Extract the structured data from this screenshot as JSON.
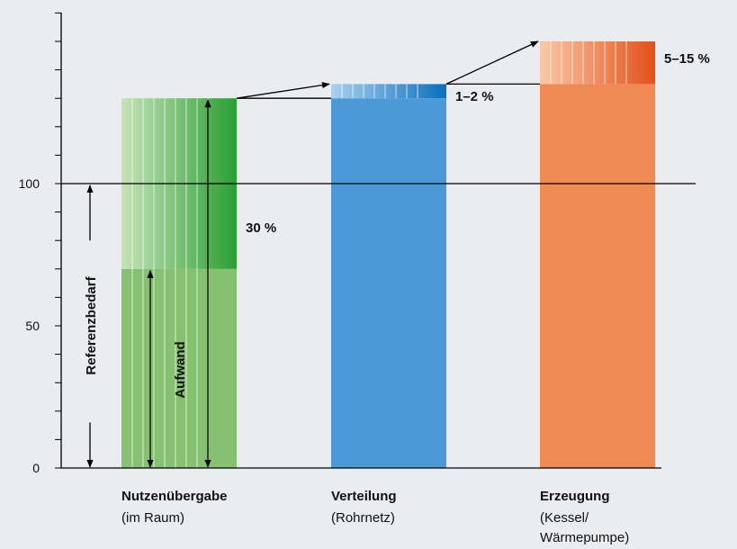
{
  "chart_data": {
    "type": "bar",
    "yticks": [
      0,
      50,
      100
    ],
    "ylim": [
      0,
      150
    ],
    "reference_line": 100,
    "categories": [
      {
        "name": "Nutzenübergabe",
        "sub": [
          "(im Raum)"
        ],
        "base": 70,
        "top": 130,
        "color": "#86c172",
        "hatch_from": "#c5e4b8",
        "hatch_to": "#2a9e32",
        "label": "30 %"
      },
      {
        "name": "Verteilung",
        "sub": [
          "(Rohrnetz)"
        ],
        "base": 130,
        "top": 135,
        "color": "#4b9ad7",
        "hatch_from": "#a9d1ef",
        "hatch_to": "#0a6fbe",
        "label": "1–2 %"
      },
      {
        "name": "Erzeugung",
        "sub": [
          "(Kessel/",
          "Wärmepumpe)"
        ],
        "base": 135,
        "top": 150,
        "color": "#f08a55",
        "hatch_from": "#fbc9a8",
        "hatch_to": "#e4501a",
        "label": "5–15 %"
      }
    ],
    "annotations": {
      "reference": "Referenzbedarf",
      "effort": "Aufwand"
    }
  }
}
